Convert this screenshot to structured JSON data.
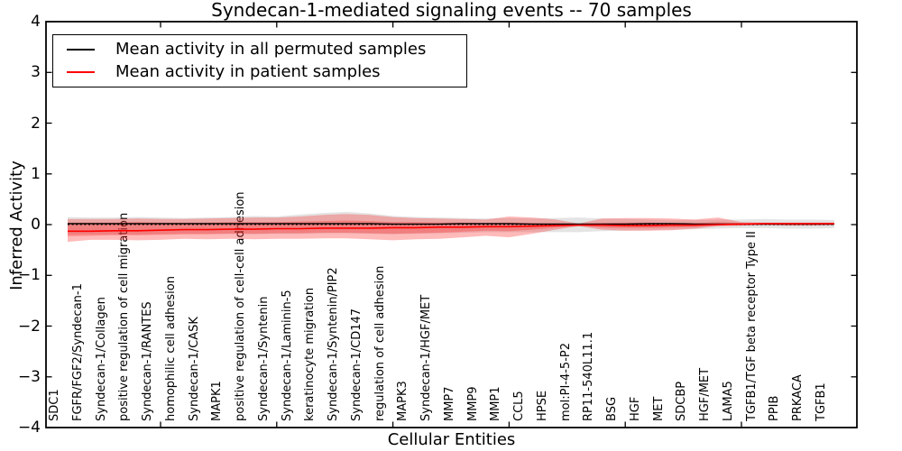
{
  "figure": {
    "title": "Syndecan-1-mediated signaling events -- 70 samples",
    "xlabel": "Cellular Entities",
    "ylabel": "Inferred Activity"
  },
  "legend": {
    "items": [
      {
        "label": "Mean activity in all permuted samples",
        "color": "#000000"
      },
      {
        "label": "Mean activity in patient samples",
        "color": "#ff0000"
      }
    ]
  },
  "chart_data": {
    "type": "line",
    "title": "Syndecan-1-mediated signaling events -- 70 samples",
    "xlabel": "Cellular Entities",
    "ylabel": "Inferred Activity",
    "ylim": [
      -4,
      4
    ],
    "yticks": [
      {
        "value": 4,
        "label": "4"
      },
      {
        "value": 3,
        "label": "3"
      },
      {
        "value": 2,
        "label": "2"
      },
      {
        "value": 1,
        "label": "1"
      },
      {
        "value": 0,
        "label": "0"
      },
      {
        "value": -1,
        "label": "−1"
      },
      {
        "value": -2,
        "label": "−2"
      },
      {
        "value": -3,
        "label": "−3"
      },
      {
        "value": -4,
        "label": "−4"
      }
    ],
    "grid": false,
    "legend_position": "upper left",
    "zero_line": 0,
    "categories": [
      "SDC1",
      "FGFR/FGF2/Syndecan-1",
      "Syndecan-1/Collagen",
      "positive regulation of cell migration",
      "Syndecan-1/RANTES",
      "homophilic cell adhesion",
      "Syndecan-1/CASK",
      "MAPK1",
      "positive regulation of cell-cell adhesion",
      "Syndecan-1/Syntenin",
      "Syndecan-1/Laminin-5",
      "keratinocyte migration",
      "Syndecan-1/Syntenin/PIP2",
      "Syndecan-1/CD147",
      "regulation of cell adhesion",
      "MAPK3",
      "Syndecan-1/HGF/MET",
      "MMP7",
      "MMP9",
      "MMP1",
      "CCL5",
      "HPSE",
      "mol:PI-4-5-P2",
      "RP11-540L11.1",
      "BSG",
      "HGF",
      "MET",
      "SDCBP",
      "HGF/MET",
      "LAMA5",
      "TGFB1/TGF beta receptor Type II",
      "PPIB",
      "PRKACA",
      "TGFB1"
    ],
    "series": [
      {
        "name": "Mean activity in all permuted samples",
        "color": "#000000",
        "values": [
          0.02,
          0.02,
          0.02,
          0.02,
          0.02,
          0.02,
          0.02,
          0.02,
          0.02,
          0.02,
          0.02,
          0.02,
          0.02,
          0.02,
          0.01,
          0.01,
          0.01,
          0.02,
          0.02,
          0.02,
          0.01,
          0.01,
          0.01,
          0.01,
          0.01,
          0.02,
          0.02,
          0.01,
          0.01,
          0.01,
          0.01,
          0.01,
          0.01,
          0.01
        ]
      },
      {
        "name": "Mean activity in patient samples",
        "color": "#ff0000",
        "values": [
          -0.13,
          -0.13,
          -0.12,
          -0.12,
          -0.11,
          -0.1,
          -0.1,
          -0.09,
          -0.09,
          -0.08,
          -0.08,
          -0.07,
          -0.07,
          -0.07,
          -0.06,
          -0.06,
          -0.05,
          -0.05,
          -0.04,
          -0.04,
          -0.03,
          -0.02,
          -0.01,
          -0.01,
          -0.02,
          -0.02,
          -0.01,
          -0.01,
          0.0,
          0.01,
          0.02,
          0.02,
          0.02,
          0.02
        ]
      }
    ],
    "bands": [
      {
        "name": "permuted-samples-range",
        "color": "rgba(130,130,130,0.22)",
        "upper": [
          0.15,
          0.14,
          0.14,
          0.15,
          0.14,
          0.13,
          0.14,
          0.15,
          0.17,
          0.16,
          0.2,
          0.23,
          0.25,
          0.22,
          0.17,
          0.15,
          0.14,
          0.13,
          0.12,
          0.13,
          0.12,
          0.13,
          0.14,
          0.12,
          0.11,
          0.1,
          0.09,
          0.09,
          0.1,
          0.1,
          0.11,
          0.1,
          0.1,
          0.09
        ],
        "lower": [
          -0.2,
          -0.19,
          -0.19,
          -0.2,
          -0.19,
          -0.18,
          -0.18,
          -0.18,
          -0.19,
          -0.18,
          -0.18,
          -0.17,
          -0.17,
          -0.18,
          -0.19,
          -0.18,
          -0.17,
          -0.16,
          -0.15,
          -0.15,
          -0.15,
          -0.15,
          -0.15,
          -0.13,
          -0.12,
          -0.11,
          -0.1,
          -0.09,
          -0.08,
          -0.07,
          -0.07,
          -0.08,
          -0.08,
          -0.07
        ]
      },
      {
        "name": "patient-samples-range",
        "color": "rgba(255,25,25,0.30)",
        "upper": [
          0.11,
          0.11,
          0.11,
          0.12,
          0.11,
          0.11,
          0.12,
          0.13,
          0.14,
          0.14,
          0.16,
          0.19,
          0.21,
          0.19,
          0.15,
          0.13,
          0.12,
          0.11,
          0.1,
          0.16,
          0.14,
          0.1,
          0.02,
          0.12,
          0.13,
          0.13,
          0.12,
          0.1,
          0.14,
          0.05,
          0.04,
          0.04,
          0.04,
          0.04
        ],
        "lower": [
          -0.34,
          -0.3,
          -0.3,
          -0.31,
          -0.3,
          -0.28,
          -0.29,
          -0.28,
          -0.29,
          -0.28,
          -0.28,
          -0.27,
          -0.27,
          -0.29,
          -0.31,
          -0.29,
          -0.28,
          -0.25,
          -0.22,
          -0.25,
          -0.18,
          -0.1,
          -0.03,
          -0.1,
          -0.12,
          -0.12,
          -0.11,
          -0.08,
          -0.03,
          -0.02,
          -0.01,
          -0.02,
          -0.02,
          -0.01
        ]
      },
      {
        "name": "patient-samples-std",
        "color": "rgba(255,25,25,0.28)",
        "upper": [
          0.04,
          0.04,
          0.04,
          0.05,
          0.04,
          0.04,
          0.04,
          0.05,
          0.05,
          0.05,
          0.06,
          0.07,
          0.08,
          0.07,
          0.05,
          0.05,
          0.04,
          0.04,
          0.03,
          0.04,
          0.03,
          0.02,
          0.01,
          0.03,
          0.04,
          0.04,
          0.03,
          0.03,
          0.05,
          0.03,
          0.03,
          0.03,
          0.03,
          0.03
        ],
        "lower": [
          -0.23,
          -0.22,
          -0.21,
          -0.21,
          -0.2,
          -0.19,
          -0.19,
          -0.18,
          -0.18,
          -0.17,
          -0.17,
          -0.16,
          -0.16,
          -0.17,
          -0.18,
          -0.17,
          -0.16,
          -0.14,
          -0.12,
          -0.13,
          -0.1,
          -0.06,
          -0.02,
          -0.06,
          -0.07,
          -0.07,
          -0.06,
          -0.05,
          -0.02,
          -0.01,
          0.0,
          -0.01,
          -0.01,
          0.0
        ]
      }
    ]
  }
}
